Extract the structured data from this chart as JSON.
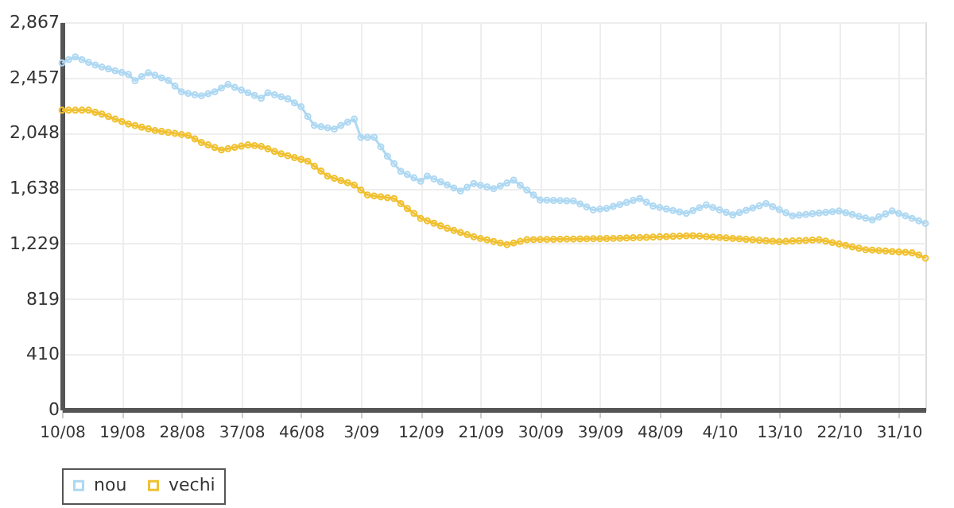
{
  "chart_data": {
    "type": "line",
    "marker": "circle",
    "grid": true,
    "legend": "bottom",
    "ylim": [
      0,
      2867
    ],
    "yticks": [
      0,
      410,
      819,
      {
        "value": 1229,
        "label": "1,229"
      },
      {
        "value": 1638,
        "label": "1,638"
      },
      {
        "value": 2048,
        "label": "2,048"
      },
      {
        "value": 2457,
        "label": "2,457"
      },
      {
        "value": 2867,
        "label": "2,867"
      }
    ],
    "categories": [
      "10/08",
      null,
      null,
      null,
      null,
      null,
      null,
      null,
      null,
      "19/08",
      null,
      null,
      null,
      null,
      null,
      null,
      null,
      null,
      "28/08",
      null,
      null,
      null,
      null,
      null,
      null,
      null,
      null,
      "37/08",
      null,
      null,
      null,
      null,
      null,
      null,
      null,
      null,
      "46/08",
      null,
      null,
      null,
      null,
      null,
      null,
      null,
      null,
      "3/09",
      null,
      null,
      null,
      null,
      null,
      null,
      null,
      null,
      "12/09",
      null,
      null,
      null,
      null,
      null,
      null,
      null,
      null,
      "21/09",
      null,
      null,
      null,
      null,
      null,
      null,
      null,
      null,
      "30/09",
      null,
      null,
      null,
      null,
      null,
      null,
      null,
      null,
      "39/09",
      null,
      null,
      null,
      null,
      null,
      null,
      null,
      null,
      "48/09",
      null,
      null,
      null,
      null,
      null,
      null,
      null,
      null,
      "4/10",
      null,
      null,
      null,
      null,
      null,
      null,
      null,
      null,
      "13/10",
      null,
      null,
      null,
      null,
      null,
      null,
      null,
      null,
      "22/10",
      null,
      null,
      null,
      null,
      null,
      null,
      null,
      null,
      "31/10",
      null,
      null,
      null,
      null
    ],
    "series": [
      {
        "name": "nou",
        "color": "#aed8f2",
        "values": [
          2566,
          2590,
          2610,
          2590,
          2570,
          2550,
          2536,
          2522,
          2508,
          2495,
          2481,
          2434,
          2465,
          2492,
          2475,
          2455,
          2436,
          2395,
          2352,
          2340,
          2330,
          2323,
          2338,
          2352,
          2380,
          2407,
          2385,
          2365,
          2345,
          2325,
          2304,
          2345,
          2330,
          2315,
          2300,
          2270,
          2242,
          2170,
          2103,
          2094,
          2085,
          2076,
          2103,
          2127,
          2150,
          2015,
          2015,
          2015,
          1945,
          1875,
          1820,
          1764,
          1740,
          1715,
          1690,
          1728,
          1707,
          1686,
          1663,
          1640,
          1618,
          1645,
          1673,
          1660,
          1648,
          1635,
          1656,
          1677,
          1698,
          1660,
          1625,
          1588,
          1551,
          1550,
          1548,
          1547,
          1545,
          1544,
          1522,
          1500,
          1478,
          1484,
          1489,
          1504,
          1518,
          1533,
          1548,
          1562,
          1535,
          1507,
          1496,
          1485,
          1474,
          1463,
          1452,
          1473,
          1494,
          1514,
          1496,
          1478,
          1460,
          1441,
          1458,
          1475,
          1492,
          1508,
          1525,
          1502,
          1480,
          1457,
          1434,
          1439,
          1444,
          1450,
          1455,
          1460,
          1465,
          1470,
          1457,
          1444,
          1430,
          1417,
          1404,
          1426,
          1448,
          1470,
          1452,
          1434,
          1415,
          1397,
          1378
        ]
      },
      {
        "name": "vechi",
        "color": "#f0c030",
        "values": [
          2216,
          2216,
          2216,
          2216,
          2216,
          2200,
          2187,
          2169,
          2150,
          2132,
          2114,
          2102,
          2090,
          2078,
          2066,
          2059,
          2051,
          2044,
          2036,
          2029,
          2003,
          1977,
          1959,
          1940,
          1922,
          1931,
          1941,
          1950,
          1959,
          1954,
          1948,
          1930,
          1911,
          1893,
          1879,
          1865,
          1852,
          1838,
          1801,
          1765,
          1728,
          1712,
          1695,
          1679,
          1662,
          1625,
          1588,
          1581,
          1575,
          1568,
          1562,
          1525,
          1488,
          1452,
          1415,
          1397,
          1379,
          1360,
          1342,
          1326,
          1311,
          1295,
          1279,
          1267,
          1256,
          1244,
          1233,
          1221,
          1233,
          1245,
          1257,
          1258,
          1259,
          1259,
          1260,
          1261,
          1262,
          1262,
          1263,
          1264,
          1265,
          1265,
          1266,
          1267,
          1268,
          1270,
          1272,
          1273,
          1275,
          1277,
          1279,
          1280,
          1282,
          1284,
          1286,
          1287,
          1284,
          1280,
          1277,
          1274,
          1270,
          1267,
          1264,
          1260,
          1257,
          1253,
          1250,
          1246,
          1243,
          1245,
          1248,
          1250,
          1252,
          1255,
          1257,
          1247,
          1236,
          1226,
          1215,
          1204,
          1194,
          1183,
          1180,
          1177,
          1174,
          1170,
          1167,
          1164,
          1160,
          1145,
          1121
        ]
      }
    ]
  }
}
